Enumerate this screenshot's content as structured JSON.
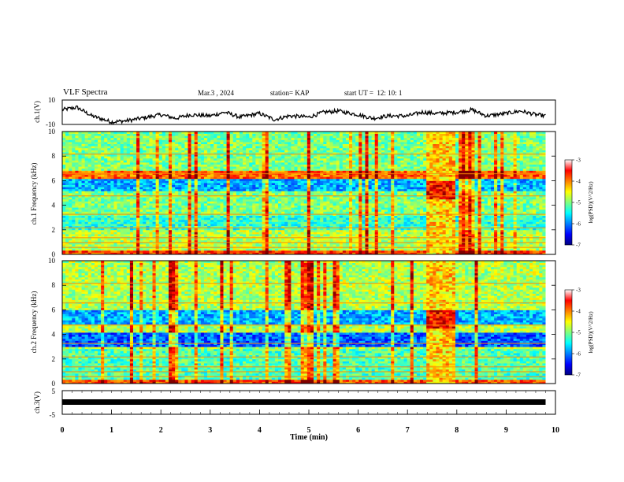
{
  "header": {
    "title": "VLF Spectra",
    "date": "Mar.3 , 2024",
    "station": "station= KAP",
    "start": "start UT =  12: 10: 1"
  },
  "chart_data": [
    {
      "type": "line",
      "panel": "ch1-waveform",
      "ylabel": "ch.1(V)",
      "ylim": [
        -10,
        10
      ],
      "yticks": [
        "10",
        "-10"
      ],
      "xlim": [
        0,
        10
      ],
      "x": [
        0.0,
        0.3,
        0.6,
        1.0,
        1.3,
        1.6,
        2.0,
        2.3,
        2.6,
        3.0,
        3.3,
        3.6,
        4.0,
        4.3,
        4.6,
        5.0,
        5.3,
        5.6,
        6.0,
        6.3,
        6.6,
        7.0,
        7.3,
        7.6,
        8.0,
        8.3,
        8.6,
        9.0,
        9.3,
        9.6,
        9.8
      ],
      "y": [
        2,
        4,
        -3,
        -8,
        -7,
        -5,
        -2,
        -5,
        -2,
        -3,
        0,
        -4,
        -1,
        -6,
        -3,
        -4,
        0,
        1,
        -2,
        -5,
        -3,
        -3,
        0,
        -1,
        0,
        2,
        -3,
        -1,
        1,
        -2,
        -3
      ]
    },
    {
      "type": "heatmap",
      "panel": "ch1-spectrogram",
      "ylabel": "ch.1\nFrequency  (kHz)",
      "ylim": [
        0,
        10
      ],
      "xlim": [
        0,
        9.8
      ],
      "yticks": [
        "0",
        "2",
        "4",
        "6",
        "8",
        "10"
      ],
      "colorbar_label": "log(PSD)(V^2/Hz)",
      "colorbar_range": [
        -7,
        -3
      ],
      "colorbar_ticks": [
        "-3",
        "-4",
        "-5",
        "-6",
        "-7"
      ],
      "burst_interval_min": [
        7.4,
        8.0
      ]
    },
    {
      "type": "heatmap",
      "panel": "ch2-spectrogram",
      "ylabel": "ch.2\nFrequency  (kHz)",
      "ylim": [
        0,
        10
      ],
      "xlim": [
        0,
        9.8
      ],
      "yticks": [
        "0",
        "2",
        "4",
        "6",
        "8",
        "10"
      ],
      "colorbar_label": "log(PSD)(V^2/Hz)",
      "colorbar_range": [
        -7,
        -3
      ],
      "colorbar_ticks": [
        "-3",
        "-4",
        "-5",
        "-6",
        "-7"
      ],
      "burst_interval_min": [
        7.4,
        8.0
      ]
    },
    {
      "type": "line",
      "panel": "ch3-waveform",
      "ylabel": "ch.3(V)",
      "ylim": [
        -5,
        5
      ],
      "yticks": [
        "5",
        "-5"
      ],
      "x": [
        0,
        9.8
      ],
      "y": [
        -1,
        -1
      ],
      "xlabel": "Time  (min)",
      "xticks": [
        "0",
        "1",
        "2",
        "3",
        "4",
        "5",
        "6",
        "7",
        "8",
        "9",
        "10"
      ],
      "xlim": [
        0,
        10
      ]
    }
  ]
}
